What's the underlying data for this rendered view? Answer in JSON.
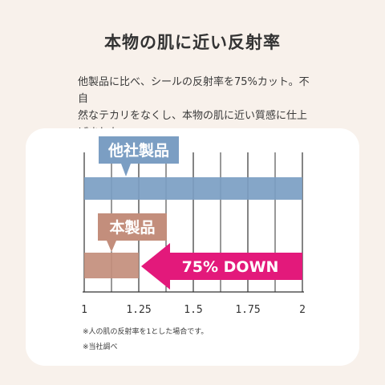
{
  "title": "本物の肌に近い反射率",
  "description_lines": [
    "他製品に比べ、シールの反射率を75%カット。不自",
    "然なテカリをなくし、本物の肌に近い質感に仕上",
    "げました。"
  ],
  "chart_data": {
    "type": "bar",
    "orientation": "horizontal",
    "categories": [
      "他社製品",
      "本製品"
    ],
    "values": [
      2.0,
      1.25
    ],
    "xlim": [
      1,
      2
    ],
    "xticks": [
      1,
      1.25,
      1.5,
      1.75,
      2
    ],
    "tick_labels": [
      "1",
      "1.25",
      "1.5",
      "1.75",
      "2"
    ],
    "grid": true,
    "colors": {
      "other": "#7b9ec3",
      "ours": "#c38e7c",
      "arrow": "#e3197b"
    },
    "annotation": "75% DOWN",
    "notes": [
      "※人の肌の反射率を1とした場合です。",
      "※当社調べ"
    ]
  }
}
